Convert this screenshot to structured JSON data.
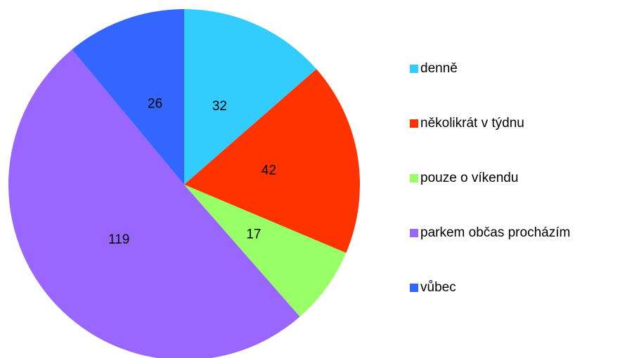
{
  "chart_data": {
    "type": "pie",
    "categories": [
      "denně",
      "několikrát v týdnu",
      "pouze o víkendu",
      "parkem občas procházím",
      "vůbec"
    ],
    "values": [
      32,
      42,
      17,
      119,
      26
    ],
    "colors": [
      "#33ccff",
      "#ff3300",
      "#99ff66",
      "#9966ff",
      "#3366ff"
    ],
    "legend": "right"
  }
}
